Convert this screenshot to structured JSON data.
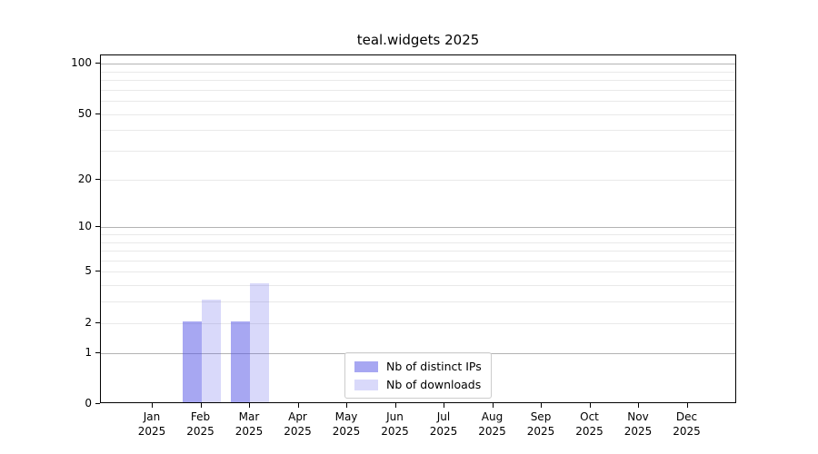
{
  "chart_data": {
    "type": "bar",
    "title": "teal.widgets 2025",
    "x_tick_months": [
      "Jan",
      "Feb",
      "Mar",
      "Apr",
      "May",
      "Jun",
      "Jul",
      "Aug",
      "Sep",
      "Oct",
      "Nov",
      "Dec"
    ],
    "x_tick_year": "2025",
    "series": [
      {
        "name": "Nb of distinct IPs",
        "color": "rgba(80,80,230,0.5)",
        "values": [
          0,
          2,
          2,
          0,
          0,
          0,
          0,
          0,
          0,
          0,
          0,
          0
        ]
      },
      {
        "name": "Nb of downloads",
        "color": "rgba(80,80,230,0.22)",
        "values": [
          0,
          3,
          4,
          0,
          0,
          0,
          0,
          0,
          0,
          0,
          0,
          0
        ]
      }
    ],
    "y_axis": {
      "scale": "log1p",
      "ticks": [
        0,
        1,
        2,
        5,
        10,
        20,
        50,
        100
      ],
      "ylim": [
        0,
        112
      ],
      "major_gridlines": [
        1,
        10,
        100
      ],
      "minor_gridlines": [
        2,
        3,
        4,
        5,
        6,
        7,
        8,
        9,
        20,
        30,
        40,
        50,
        60,
        70,
        80,
        90
      ]
    },
    "grid": true,
    "legend_position": "lower center"
  },
  "colors": {
    "bar_distinct_ips_rendered": "#a8a8f0",
    "bar_downloads_rendered": "#d9daf7",
    "major_gridline": "#b3b3b3",
    "minor_gridline": "#e9e9e9",
    "axis": "#000000",
    "text": "#000000"
  }
}
